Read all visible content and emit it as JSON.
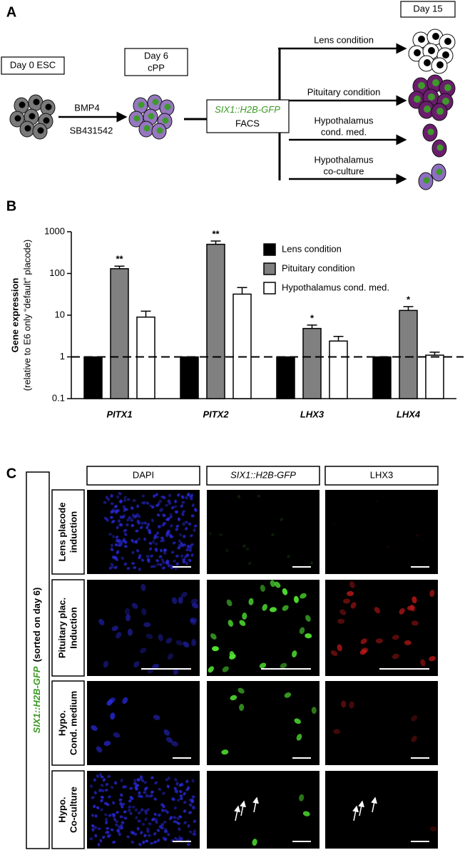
{
  "panel_a": {
    "label": "A",
    "start_box": "Day 0 ESC",
    "treatment": [
      "BMP4",
      "SB431542"
    ],
    "day6_box": [
      "Day 6",
      "cPP"
    ],
    "facs_box": {
      "reporter": "SIX1::H2B-GFP",
      "method": "FACS"
    },
    "end_box": "Day 15",
    "branches": [
      [
        "Lens condition"
      ],
      [
        "Pituitary condition"
      ],
      [
        "Hypothalamus",
        "cond. med."
      ],
      [
        "Hypothalamus",
        "co-culture"
      ]
    ]
  },
  "chart_data": {
    "type": "bar",
    "panel_label": "B",
    "ylabel": "Gene expression",
    "ylabel_note": "(relative to E6 only “default” placode)",
    "log_scale": true,
    "ylim": [
      0.1,
      1000
    ],
    "yticks": [
      0.1,
      1,
      10,
      100,
      1000
    ],
    "reference_line": 1,
    "legend": "top-right",
    "categories": [
      "PITX1",
      "PITX2",
      "LHX3",
      "LHX4"
    ],
    "series": [
      {
        "name": "Lens condition",
        "color": "#000000",
        "values": [
          1,
          1,
          1,
          1
        ]
      },
      {
        "name": "Pituitary condition",
        "color": "#808080",
        "values": [
          130,
          500,
          4.8,
          13
        ],
        "errors": [
          20,
          100,
          1,
          3
        ],
        "annotations": [
          "**",
          "**",
          "*",
          "*"
        ]
      },
      {
        "name": "Hypothalamus cond. med.",
        "color": "#ffffff",
        "values": [
          9,
          32,
          2.4,
          1.1
        ],
        "errors": [
          3.5,
          14,
          0.7,
          0.2
        ]
      }
    ]
  },
  "panel_c": {
    "label": "C",
    "columns": [
      "DAPI",
      "SIX1::H2B-GFP",
      "LHX3"
    ],
    "rows": [
      [
        "Lens placode",
        "induction"
      ],
      [
        "Pituitary plac.",
        "Induction"
      ],
      [
        "Hypo.",
        "Cond. medium"
      ],
      [
        "Hypo.",
        "Co-culture"
      ]
    ],
    "side_label": {
      "reporter": "SIX1::H2B-GFP",
      "note": "(sorted on day 6)"
    }
  }
}
